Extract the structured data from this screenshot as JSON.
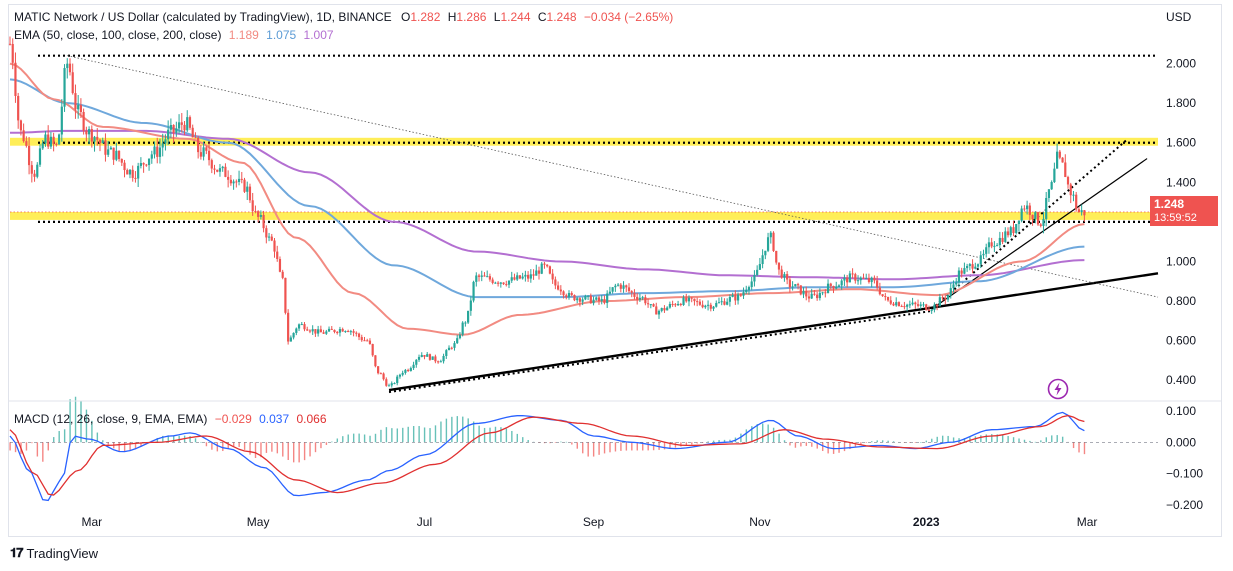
{
  "header": {
    "symbol": "MATIC Network / US Dollar (calculated by TradingView), 1D, BINANCE",
    "o_label": "O",
    "o": "1.282",
    "h_label": "H",
    "h": "1.286",
    "l_label": "L",
    "l": "1.244",
    "c_label": "C",
    "c": "1.248",
    "change": "−0.034 (−2.65%)",
    "currency": "USD"
  },
  "ema_legend": {
    "label": "EMA (50, close, 100, close, 200, close)",
    "v50": "1.189",
    "v100": "1.075",
    "v200": "1.007"
  },
  "macd_legend": {
    "label": "MACD (12, 26, close, 9, EMA, EMA)",
    "hist": "−0.029",
    "macd": "0.037",
    "signal": "0.066"
  },
  "last_price": {
    "price": "1.248",
    "countdown": "13:59:52"
  },
  "branding": {
    "name": "TradingView"
  },
  "colors": {
    "up": "#26a69a",
    "down": "#ef5350",
    "ema50": "#f28b82",
    "ema100": "#6fa8dc",
    "ema200": "#b36fd1",
    "macd": "#2962ff",
    "signal": "#e03030",
    "zone": "#ffeb3b"
  },
  "chart_data": [
    {
      "type": "candlestick",
      "title": "MATIC Network / US Dollar (calculated by TradingView), 1D, BINANCE",
      "x_labels": [
        "Mar",
        "May",
        "Jul",
        "Sep",
        "Nov",
        "2023",
        "Mar"
      ],
      "y_ticks": [
        "2.000",
        "1.800",
        "1.600",
        "1.400",
        "1.200",
        "1.000",
        "0.800",
        "0.600",
        "0.400"
      ],
      "ylim": [
        0.3,
        2.2
      ],
      "x_axis": "2022-01-30 to 2023-03-27",
      "close_path": [
        [
          "2022-01-30",
          2.1
        ],
        [
          "2022-02-03",
          1.65
        ],
        [
          "2022-02-08",
          1.45
        ],
        [
          "2022-02-12",
          1.62
        ],
        [
          "2022-02-16",
          1.58
        ],
        [
          "2022-02-20",
          2.0
        ],
        [
          "2022-02-24",
          1.75
        ],
        [
          "2022-02-28",
          1.65
        ],
        [
          "2022-03-08",
          1.55
        ],
        [
          "2022-03-16",
          1.45
        ],
        [
          "2022-03-24",
          1.55
        ],
        [
          "2022-03-30",
          1.65
        ],
        [
          "2022-04-04",
          1.7
        ],
        [
          "2022-04-10",
          1.55
        ],
        [
          "2022-04-18",
          1.45
        ],
        [
          "2022-04-26",
          1.38
        ],
        [
          "2022-05-01",
          1.22
        ],
        [
          "2022-05-06",
          1.1
        ],
        [
          "2022-05-10",
          0.9
        ],
        [
          "2022-05-12",
          0.6
        ],
        [
          "2022-05-16",
          0.68
        ],
        [
          "2022-05-24",
          0.64
        ],
        [
          "2022-06-02",
          0.66
        ],
        [
          "2022-06-10",
          0.6
        ],
        [
          "2022-06-14",
          0.44
        ],
        [
          "2022-06-18",
          0.37
        ],
        [
          "2022-06-24",
          0.45
        ],
        [
          "2022-06-30",
          0.53
        ],
        [
          "2022-07-06",
          0.5
        ],
        [
          "2022-07-12",
          0.58
        ],
        [
          "2022-07-16",
          0.7
        ],
        [
          "2022-07-20",
          0.92
        ],
        [
          "2022-07-30",
          0.9
        ],
        [
          "2022-08-08",
          0.92
        ],
        [
          "2022-08-14",
          0.97
        ],
        [
          "2022-08-18",
          0.88
        ],
        [
          "2022-08-24",
          0.82
        ],
        [
          "2022-09-04",
          0.8
        ],
        [
          "2022-09-10",
          0.88
        ],
        [
          "2022-09-18",
          0.82
        ],
        [
          "2022-09-24",
          0.75
        ],
        [
          "2022-10-04",
          0.8
        ],
        [
          "2022-10-14",
          0.78
        ],
        [
          "2022-10-24",
          0.82
        ],
        [
          "2022-10-29",
          0.9
        ],
        [
          "2022-11-05",
          1.12
        ],
        [
          "2022-11-08",
          0.95
        ],
        [
          "2022-11-12",
          0.88
        ],
        [
          "2022-11-20",
          0.82
        ],
        [
          "2022-11-28",
          0.88
        ],
        [
          "2022-12-05",
          0.92
        ],
        [
          "2022-12-12",
          0.9
        ],
        [
          "2022-12-18",
          0.8
        ],
        [
          "2022-12-26",
          0.78
        ],
        [
          "2023-01-03",
          0.77
        ],
        [
          "2023-01-08",
          0.82
        ],
        [
          "2023-01-14",
          0.95
        ],
        [
          "2023-01-20",
          1.0
        ],
        [
          "2023-01-26",
          1.1
        ],
        [
          "2023-02-01",
          1.15
        ],
        [
          "2023-02-06",
          1.28
        ],
        [
          "2023-02-12",
          1.2
        ],
        [
          "2023-02-16",
          1.38
        ],
        [
          "2023-02-18",
          1.52
        ],
        [
          "2023-02-20",
          1.48
        ],
        [
          "2023-02-23",
          1.35
        ],
        [
          "2023-02-26",
          1.25
        ],
        [
          "2023-02-28",
          1.248
        ]
      ],
      "ema_50": [
        [
          "2022-01-30",
          2.0
        ],
        [
          "2022-02-15",
          1.82
        ],
        [
          "2022-03-05",
          1.68
        ],
        [
          "2022-04-05",
          1.62
        ],
        [
          "2022-04-25",
          1.5
        ],
        [
          "2022-05-15",
          1.12
        ],
        [
          "2022-06-05",
          0.84
        ],
        [
          "2022-06-25",
          0.66
        ],
        [
          "2022-07-15",
          0.63
        ],
        [
          "2022-08-05",
          0.73
        ],
        [
          "2022-09-05",
          0.8
        ],
        [
          "2022-10-05",
          0.82
        ],
        [
          "2022-11-05",
          0.84
        ],
        [
          "2022-12-05",
          0.86
        ],
        [
          "2023-01-05",
          0.83
        ],
        [
          "2023-02-05",
          1.0
        ],
        [
          "2023-02-28",
          1.189
        ]
      ],
      "ema_100": [
        [
          "2022-01-30",
          1.92
        ],
        [
          "2022-02-20",
          1.8
        ],
        [
          "2022-03-20",
          1.7
        ],
        [
          "2022-04-20",
          1.6
        ],
        [
          "2022-05-20",
          1.28
        ],
        [
          "2022-06-20",
          0.98
        ],
        [
          "2022-07-20",
          0.82
        ],
        [
          "2022-08-20",
          0.82
        ],
        [
          "2022-09-20",
          0.84
        ],
        [
          "2022-10-20",
          0.85
        ],
        [
          "2022-11-20",
          0.87
        ],
        [
          "2022-12-20",
          0.87
        ],
        [
          "2023-01-20",
          0.9
        ],
        [
          "2023-02-28",
          1.075
        ]
      ],
      "ema_200": [
        [
          "2022-01-30",
          1.65
        ],
        [
          "2022-02-20",
          1.66
        ],
        [
          "2022-03-20",
          1.66
        ],
        [
          "2022-04-20",
          1.62
        ],
        [
          "2022-05-20",
          1.45
        ],
        [
          "2022-06-20",
          1.2
        ],
        [
          "2022-07-20",
          1.05
        ],
        [
          "2022-08-20",
          1.0
        ],
        [
          "2022-09-20",
          0.96
        ],
        [
          "2022-10-20",
          0.93
        ],
        [
          "2022-11-20",
          0.92
        ],
        [
          "2022-12-20",
          0.91
        ],
        [
          "2023-01-20",
          0.93
        ],
        [
          "2023-02-28",
          1.007
        ]
      ],
      "zones": [
        {
          "from": 1.585,
          "to": 1.625,
          "color": "#ffeb3b"
        },
        {
          "from": 1.21,
          "to": 1.25,
          "color": "#ffeb3b"
        }
      ],
      "horizontal_lines": [
        {
          "value": 2.04,
          "style": "dotted"
        },
        {
          "value": 1.6,
          "style": "dotted"
        },
        {
          "value": 1.2,
          "style": "dotted"
        },
        {
          "value": 1.25,
          "style": "dotted",
          "color": "#ef5350"
        }
      ],
      "trendlines": [
        {
          "from": [
            "2022-06-18",
            0.35
          ],
          "to": [
            "2023-03-27",
            0.94
          ],
          "style": "solid-thick"
        },
        {
          "from": [
            "2022-06-18",
            0.34
          ],
          "to": [
            "2023-01-03",
            0.75
          ],
          "style": "dotted"
        },
        {
          "from": [
            "2022-02-20",
            2.04
          ],
          "to": [
            "2023-03-27",
            0.82
          ],
          "style": "dotted-thin"
        },
        {
          "from": [
            "2023-01-03",
            0.76
          ],
          "to": [
            "2023-03-23",
            1.52
          ],
          "style": "solid"
        },
        {
          "from": [
            "2023-01-03",
            0.76
          ],
          "to": [
            "2023-03-16",
            1.62
          ],
          "style": "dotted"
        }
      ]
    },
    {
      "type": "macd",
      "title": "MACD (12, 26, close, 9, EMA, EMA)",
      "y_ticks": [
        "0.100",
        "0.000",
        "−0.100",
        "−0.200"
      ],
      "ylim": [
        -0.225,
        0.125
      ],
      "macd": [
        [
          "2022-01-30",
          0.02
        ],
        [
          "2022-02-06",
          -0.09
        ],
        [
          "2022-02-12",
          -0.19
        ],
        [
          "2022-02-18",
          -0.12
        ],
        [
          "2022-02-22",
          0.02
        ],
        [
          "2022-02-28",
          0.01
        ],
        [
          "2022-03-12",
          -0.03
        ],
        [
          "2022-03-30",
          0.02
        ],
        [
          "2022-04-06",
          0.03
        ],
        [
          "2022-04-20",
          -0.02
        ],
        [
          "2022-05-03",
          -0.08
        ],
        [
          "2022-05-15",
          -0.17
        ],
        [
          "2022-05-25",
          -0.16
        ],
        [
          "2022-06-10",
          -0.12
        ],
        [
          "2022-06-18",
          -0.09
        ],
        [
          "2022-07-01",
          -0.04
        ],
        [
          "2022-07-20",
          0.06
        ],
        [
          "2022-08-05",
          0.085
        ],
        [
          "2022-08-20",
          0.07
        ],
        [
          "2022-09-01",
          0.02
        ],
        [
          "2022-09-15",
          0.0
        ],
        [
          "2022-10-01",
          -0.02
        ],
        [
          "2022-10-20",
          0.0
        ],
        [
          "2022-11-05",
          0.07
        ],
        [
          "2022-11-15",
          0.02
        ],
        [
          "2022-11-28",
          -0.02
        ],
        [
          "2022-12-15",
          -0.01
        ],
        [
          "2022-12-28",
          -0.02
        ],
        [
          "2023-01-10",
          0.0
        ],
        [
          "2023-01-25",
          0.04
        ],
        [
          "2023-02-10",
          0.05
        ],
        [
          "2023-02-20",
          0.095
        ],
        [
          "2023-02-28",
          0.037
        ]
      ],
      "signal": [
        [
          "2022-01-30",
          0.04
        ],
        [
          "2022-02-08",
          -0.1
        ],
        [
          "2022-02-14",
          -0.17
        ],
        [
          "2022-02-24",
          -0.09
        ],
        [
          "2022-03-05",
          -0.01
        ],
        [
          "2022-03-25",
          0.0
        ],
        [
          "2022-04-12",
          0.02
        ],
        [
          "2022-04-28",
          -0.03
        ],
        [
          "2022-05-15",
          -0.12
        ],
        [
          "2022-05-30",
          -0.16
        ],
        [
          "2022-06-15",
          -0.13
        ],
        [
          "2022-07-05",
          -0.07
        ],
        [
          "2022-07-25",
          0.03
        ],
        [
          "2022-08-10",
          0.08
        ],
        [
          "2022-08-28",
          0.06
        ],
        [
          "2022-09-15",
          0.02
        ],
        [
          "2022-10-05",
          -0.01
        ],
        [
          "2022-10-25",
          -0.005
        ],
        [
          "2022-11-10",
          0.04
        ],
        [
          "2022-11-25",
          0.01
        ],
        [
          "2022-12-15",
          -0.015
        ],
        [
          "2023-01-05",
          -0.02
        ],
        [
          "2023-01-25",
          0.02
        ],
        [
          "2023-02-12",
          0.05
        ],
        [
          "2023-02-22",
          0.085
        ],
        [
          "2023-02-28",
          0.066
        ]
      ]
    }
  ]
}
